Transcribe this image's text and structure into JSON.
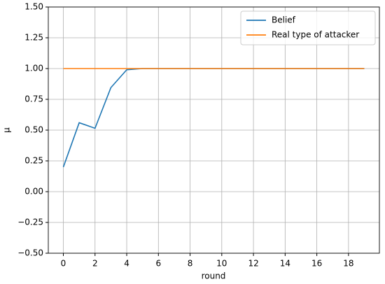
{
  "chart_data": {
    "type": "line",
    "x_label": "round",
    "y_label": "μ",
    "x": [
      0,
      1,
      2,
      3,
      4,
      5,
      6,
      7,
      8,
      9,
      10,
      11,
      12,
      13,
      14,
      15,
      16,
      17,
      18,
      19
    ],
    "series": [
      {
        "name": "Belief",
        "color": "#1f77b4",
        "values": [
          0.2,
          0.56,
          0.515,
          0.845,
          0.99,
          1.0,
          1.0,
          1.0,
          1.0,
          1.0,
          1.0,
          1.0,
          1.0,
          1.0,
          1.0,
          1.0,
          1.0,
          1.0,
          1.0,
          1.0
        ]
      },
      {
        "name": "Real type of attacker",
        "color": "#ff7f0e",
        "values": [
          1,
          1,
          1,
          1,
          1,
          1,
          1,
          1,
          1,
          1,
          1,
          1,
          1,
          1,
          1,
          1,
          1,
          1,
          1,
          1
        ]
      }
    ],
    "xlim": [
      -0.95,
      19.95
    ],
    "xticks": [
      0,
      2,
      4,
      6,
      8,
      10,
      12,
      14,
      16,
      18
    ],
    "ylim": [
      -0.5,
      1.5
    ],
    "yticks": [
      {
        "value": -0.5,
        "label": "−0.50"
      },
      {
        "value": -0.25,
        "label": "−0.25"
      },
      {
        "value": 0,
        "label": "0.00"
      },
      {
        "value": 0.25,
        "label": "0.25"
      },
      {
        "value": 0.5,
        "label": "0.50"
      },
      {
        "value": 0.75,
        "label": "0.75"
      },
      {
        "value": 1,
        "label": "1.00"
      },
      {
        "value": 1.25,
        "label": "1.25"
      },
      {
        "value": 1.5,
        "label": "1.50"
      }
    ],
    "grid": true,
    "legend": "upper right"
  }
}
